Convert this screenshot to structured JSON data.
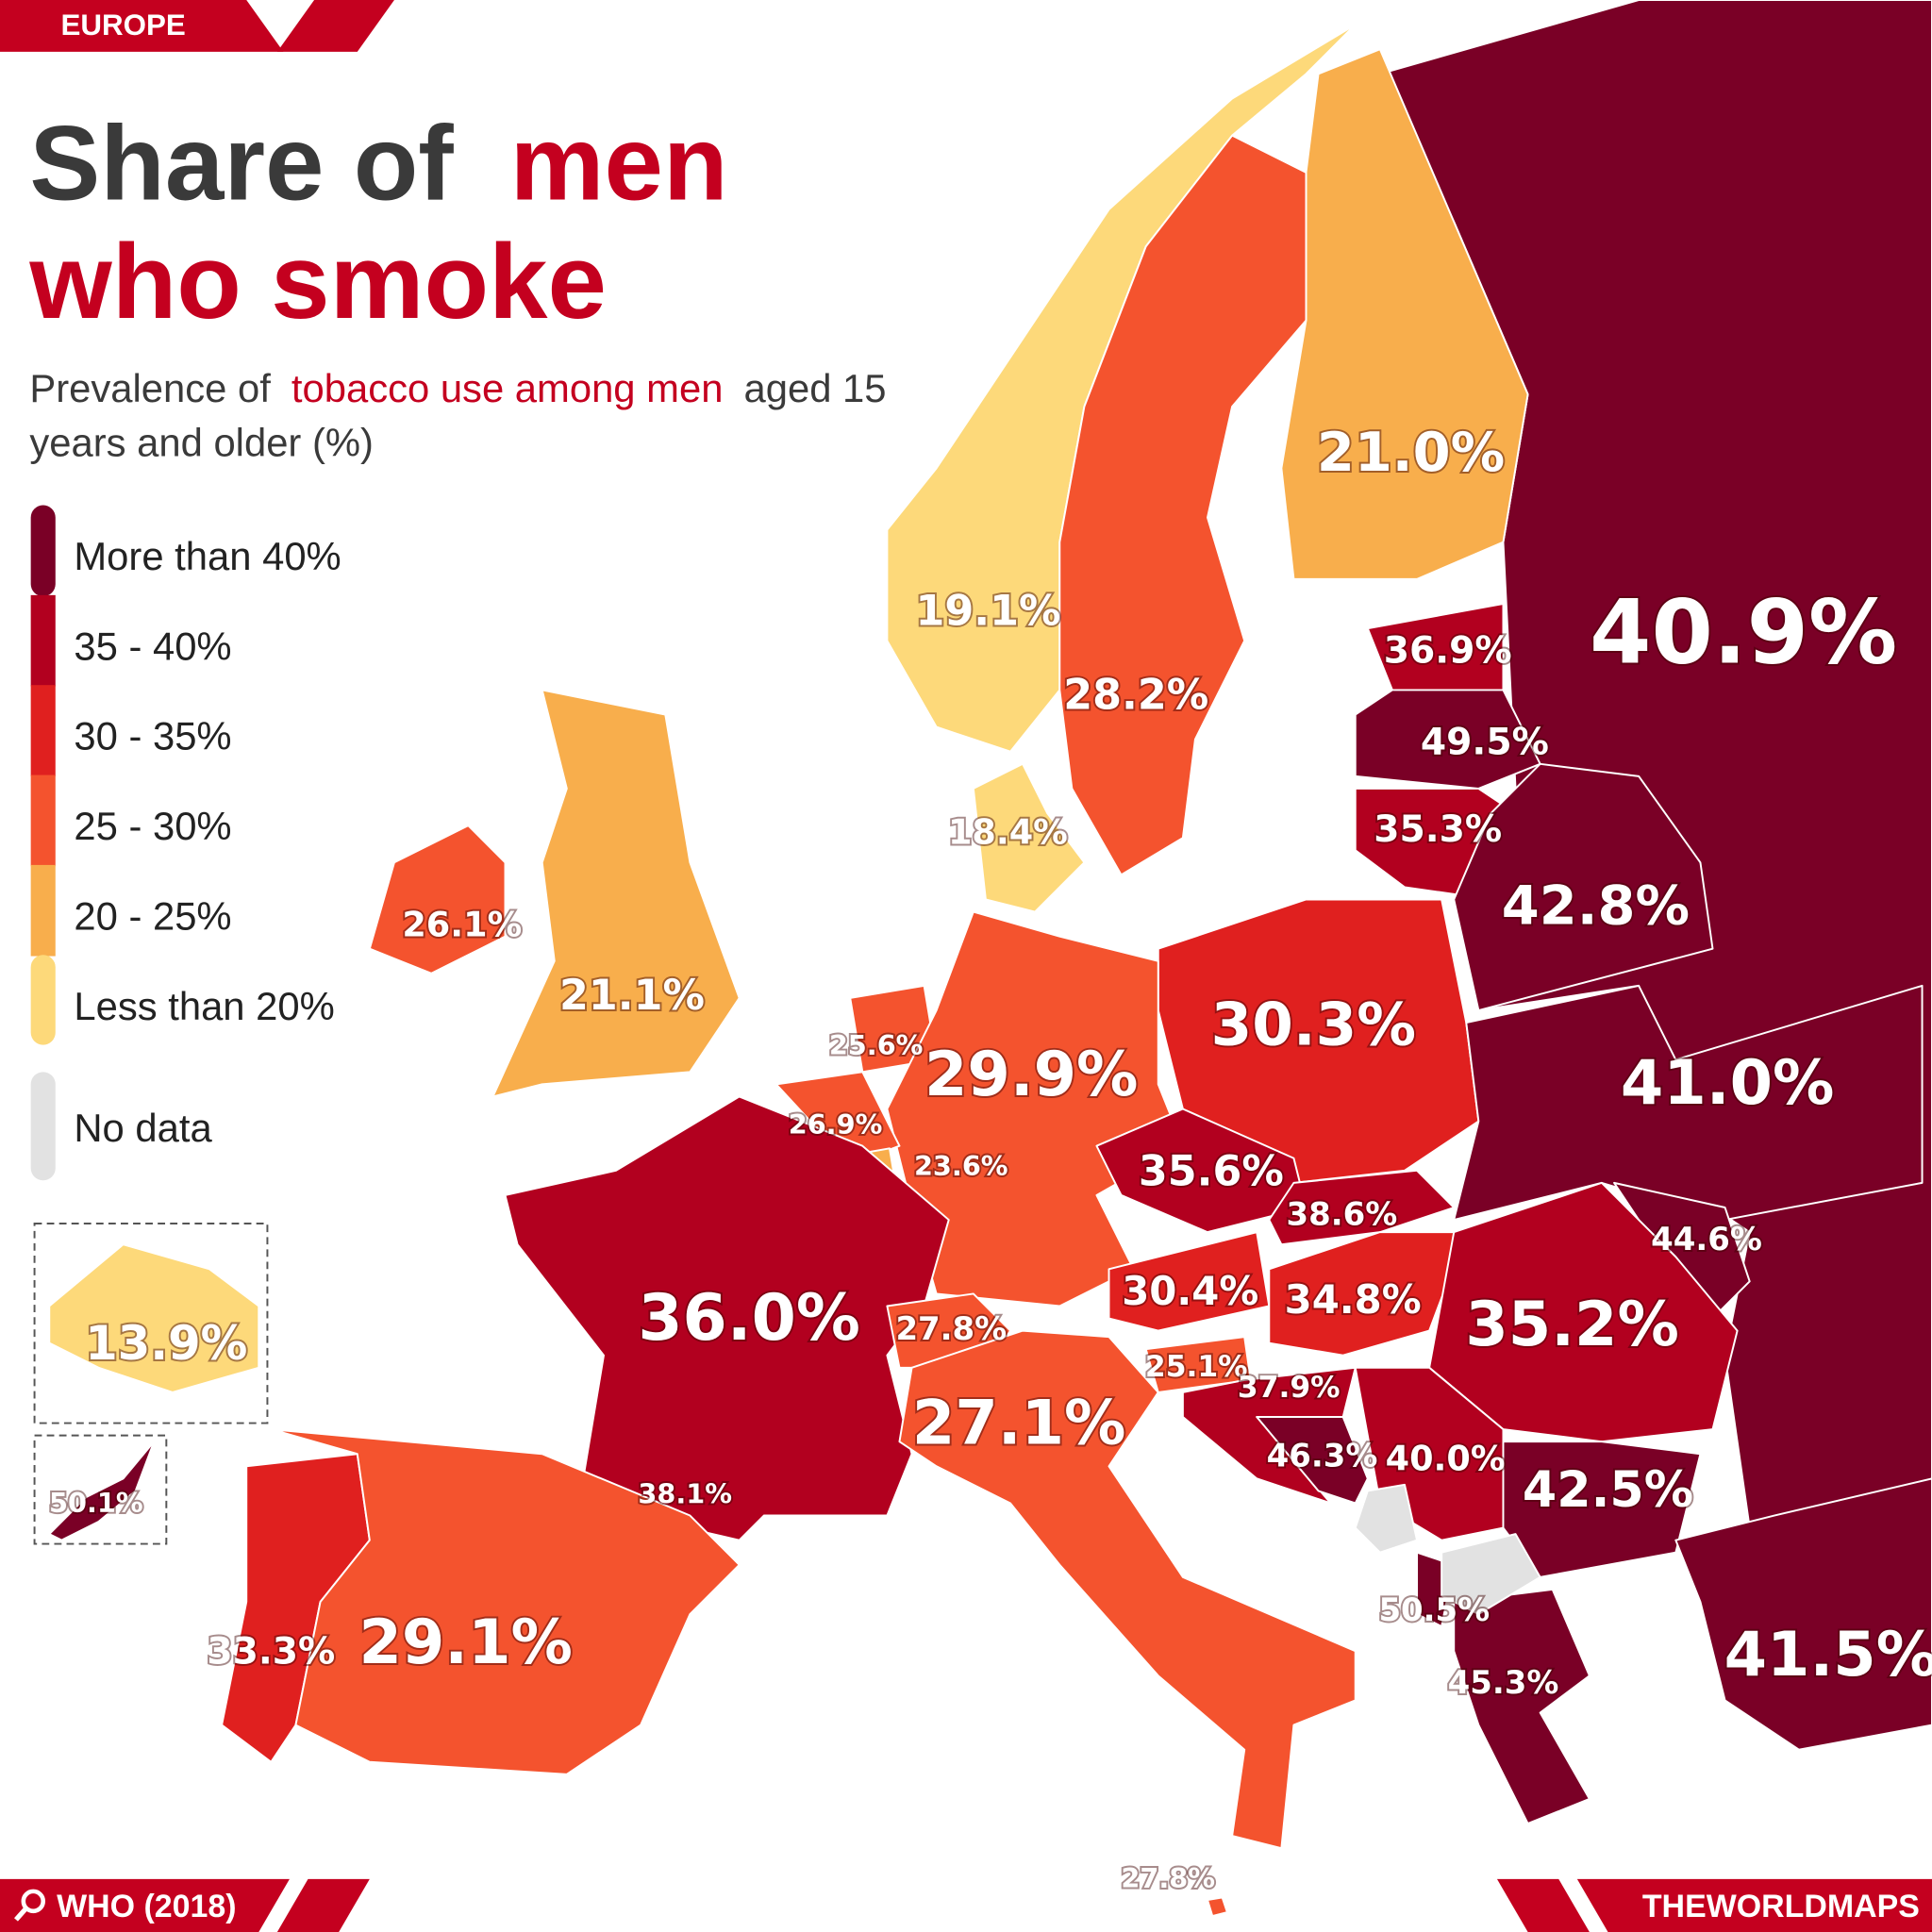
{
  "chart_data": {
    "type": "choropleth",
    "tag": "EUROPE",
    "title": [
      "Share of",
      "men",
      "who smoke"
    ],
    "subtitle": [
      "Prevalence of",
      "tobacco use among men",
      "aged 15",
      "years and older (%)"
    ],
    "legend": [
      {
        "label": "More than 40%",
        "color": "#7a0026"
      },
      {
        "label": "35 - 40%",
        "color": "#b2001f"
      },
      {
        "label": "30 - 35%",
        "color": "#e0201f"
      },
      {
        "label": "25 - 30%",
        "color": "#f4532e"
      },
      {
        "label": "20 - 25%",
        "color": "#f8ae4c"
      },
      {
        "label": "Less than 20%",
        "color": "#fdd97a"
      }
    ],
    "no_data": {
      "label": "No data",
      "color": "#e2e2e2"
    },
    "values": [
      40.9,
      21.0,
      19.1,
      28.2,
      36.9,
      49.5,
      35.3,
      18.4,
      42.8,
      26.1,
      21.1,
      30.3,
      25.6,
      29.9,
      26.9,
      23.6,
      35.6,
      41.0,
      38.6,
      44.6,
      30.4,
      34.8,
      36.0,
      35.2,
      27.8,
      25.1,
      37.9,
      27.1,
      46.3,
      40.0,
      42.5,
      38.1,
      50.5,
      41.5,
      33.3,
      29.1,
      45.3,
      27.8,
      13.9,
      50.1
    ],
    "value_labels": [
      "40.9%",
      "21.0%",
      "19.1%",
      "28.2%",
      "36.9%",
      "49.5%",
      "35.3%",
      "18.4%",
      "42.8%",
      "26.1%",
      "21.1%",
      "30.3%",
      "25.6%",
      "29.9%",
      "26.9%",
      "23.6%",
      "35.6%",
      "41.0%",
      "38.6%",
      "44.6%",
      "30.4%",
      "34.8%",
      "36.0%",
      "35.2%",
      "27.8%",
      "25.1%",
      "37.9%",
      "27.1%",
      "46.3%",
      "40.0%",
      "42.5%",
      "38.1%",
      "50.5%",
      "41.5%",
      "33.3%",
      "29.1%",
      "45.3%",
      "27.8%",
      "13.9%",
      "50.1%"
    ],
    "colors": [
      "#7a0026",
      "#f8ae4c",
      "#fdd97a",
      "#f4532e",
      "#b2001f",
      "#7a0026",
      "#b2001f",
      "#fdd97a",
      "#7a0026",
      "#f4532e",
      "#f8ae4c",
      "#e0201f",
      "#f4532e",
      "#f4532e",
      "#f4532e",
      "#f8ae4c",
      "#b2001f",
      "#7a0026",
      "#b2001f",
      "#7a0026",
      "#e0201f",
      "#e0201f",
      "#b2001f",
      "#b2001f",
      "#f4532e",
      "#f4532e",
      "#b2001f",
      "#f4532e",
      "#7a0026",
      "#b2001f",
      "#7a0026",
      "#b2001f",
      "#7a0026",
      "#7a0026",
      "#e0201f",
      "#f4532e",
      "#7a0026",
      "#f4532e",
      "#fdd97a",
      "#7a0026"
    ],
    "source": "WHO (2018)",
    "credit": "THEWORLDMAPS"
  }
}
